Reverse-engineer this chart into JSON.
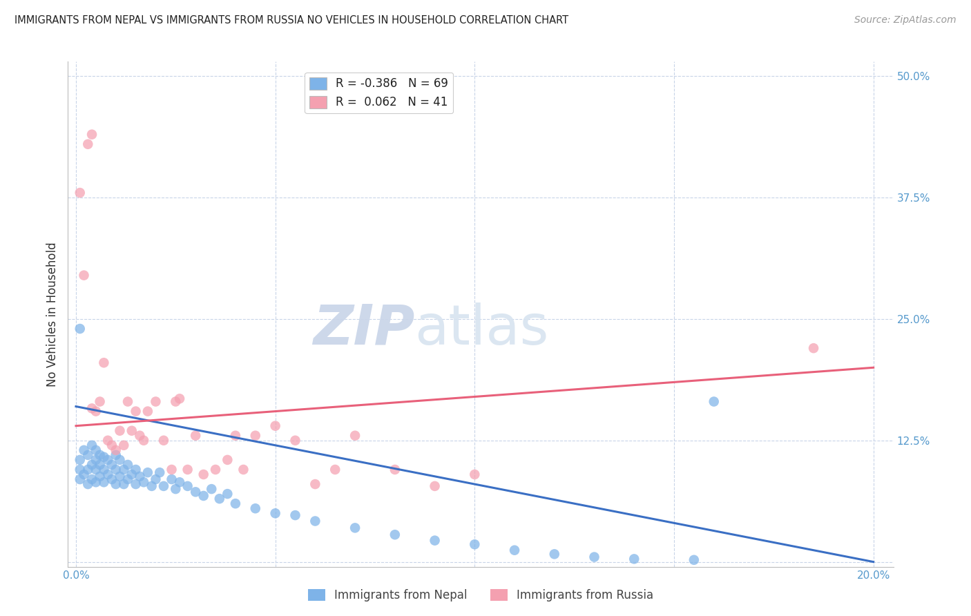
{
  "title": "IMMIGRANTS FROM NEPAL VS IMMIGRANTS FROM RUSSIA NO VEHICLES IN HOUSEHOLD CORRELATION CHART",
  "source": "Source: ZipAtlas.com",
  "ylabel": "No Vehicles in Household",
  "ytick_values": [
    0.0,
    0.125,
    0.25,
    0.375,
    0.5
  ],
  "ytick_labels": [
    "",
    "12.5%",
    "25.0%",
    "37.5%",
    "50.0%"
  ],
  "xtick_values": [
    0.0,
    0.05,
    0.1,
    0.15,
    0.2
  ],
  "xtick_labels": [
    "0.0%",
    "",
    "",
    "",
    "20.0%"
  ],
  "xlim": [
    -0.002,
    0.205
  ],
  "ylim": [
    -0.005,
    0.515
  ],
  "nepal_R": -0.386,
  "nepal_N": 69,
  "russia_R": 0.062,
  "russia_N": 41,
  "nepal_color": "#7EB3E8",
  "russia_color": "#F4A0B0",
  "nepal_line_color": "#3A6FC4",
  "russia_line_color": "#E8607A",
  "watermark_zip": "ZIP",
  "watermark_atlas": "atlas",
  "background_color": "#ffffff",
  "grid_color": "#c8d4e8",
  "nepal_scatter_x": [
    0.001,
    0.001,
    0.001,
    0.002,
    0.002,
    0.003,
    0.003,
    0.003,
    0.004,
    0.004,
    0.004,
    0.005,
    0.005,
    0.005,
    0.005,
    0.006,
    0.006,
    0.006,
    0.007,
    0.007,
    0.007,
    0.008,
    0.008,
    0.009,
    0.009,
    0.01,
    0.01,
    0.01,
    0.011,
    0.011,
    0.012,
    0.012,
    0.013,
    0.013,
    0.014,
    0.015,
    0.015,
    0.016,
    0.017,
    0.018,
    0.019,
    0.02,
    0.021,
    0.022,
    0.024,
    0.025,
    0.026,
    0.028,
    0.03,
    0.032,
    0.034,
    0.036,
    0.038,
    0.04,
    0.045,
    0.05,
    0.055,
    0.06,
    0.07,
    0.08,
    0.09,
    0.1,
    0.11,
    0.12,
    0.13,
    0.14,
    0.155,
    0.001,
    0.16
  ],
  "nepal_scatter_y": [
    0.105,
    0.095,
    0.085,
    0.115,
    0.09,
    0.11,
    0.095,
    0.08,
    0.12,
    0.1,
    0.085,
    0.115,
    0.105,
    0.095,
    0.082,
    0.11,
    0.1,
    0.088,
    0.108,
    0.095,
    0.082,
    0.105,
    0.09,
    0.1,
    0.085,
    0.11,
    0.095,
    0.08,
    0.105,
    0.088,
    0.095,
    0.08,
    0.1,
    0.085,
    0.09,
    0.08,
    0.095,
    0.088,
    0.082,
    0.092,
    0.078,
    0.085,
    0.092,
    0.078,
    0.085,
    0.075,
    0.082,
    0.078,
    0.072,
    0.068,
    0.075,
    0.065,
    0.07,
    0.06,
    0.055,
    0.05,
    0.048,
    0.042,
    0.035,
    0.028,
    0.022,
    0.018,
    0.012,
    0.008,
    0.005,
    0.003,
    0.002,
    0.24,
    0.165
  ],
  "russia_scatter_x": [
    0.001,
    0.002,
    0.003,
    0.004,
    0.005,
    0.006,
    0.007,
    0.008,
    0.009,
    0.01,
    0.011,
    0.012,
    0.013,
    0.014,
    0.015,
    0.016,
    0.017,
    0.018,
    0.02,
    0.022,
    0.024,
    0.025,
    0.026,
    0.028,
    0.03,
    0.032,
    0.035,
    0.038,
    0.04,
    0.042,
    0.045,
    0.05,
    0.055,
    0.06,
    0.065,
    0.07,
    0.08,
    0.09,
    0.1,
    0.004,
    0.185
  ],
  "russia_scatter_y": [
    0.38,
    0.295,
    0.43,
    0.158,
    0.155,
    0.165,
    0.205,
    0.125,
    0.12,
    0.115,
    0.135,
    0.12,
    0.165,
    0.135,
    0.155,
    0.13,
    0.125,
    0.155,
    0.165,
    0.125,
    0.095,
    0.165,
    0.168,
    0.095,
    0.13,
    0.09,
    0.095,
    0.105,
    0.13,
    0.095,
    0.13,
    0.14,
    0.125,
    0.08,
    0.095,
    0.13,
    0.095,
    0.078,
    0.09,
    0.44,
    0.22
  ],
  "nepal_line_x": [
    0.0,
    0.2
  ],
  "nepal_line_y": [
    0.16,
    0.0
  ],
  "russia_line_x": [
    0.0,
    0.2
  ],
  "russia_line_y": [
    0.14,
    0.2
  ]
}
